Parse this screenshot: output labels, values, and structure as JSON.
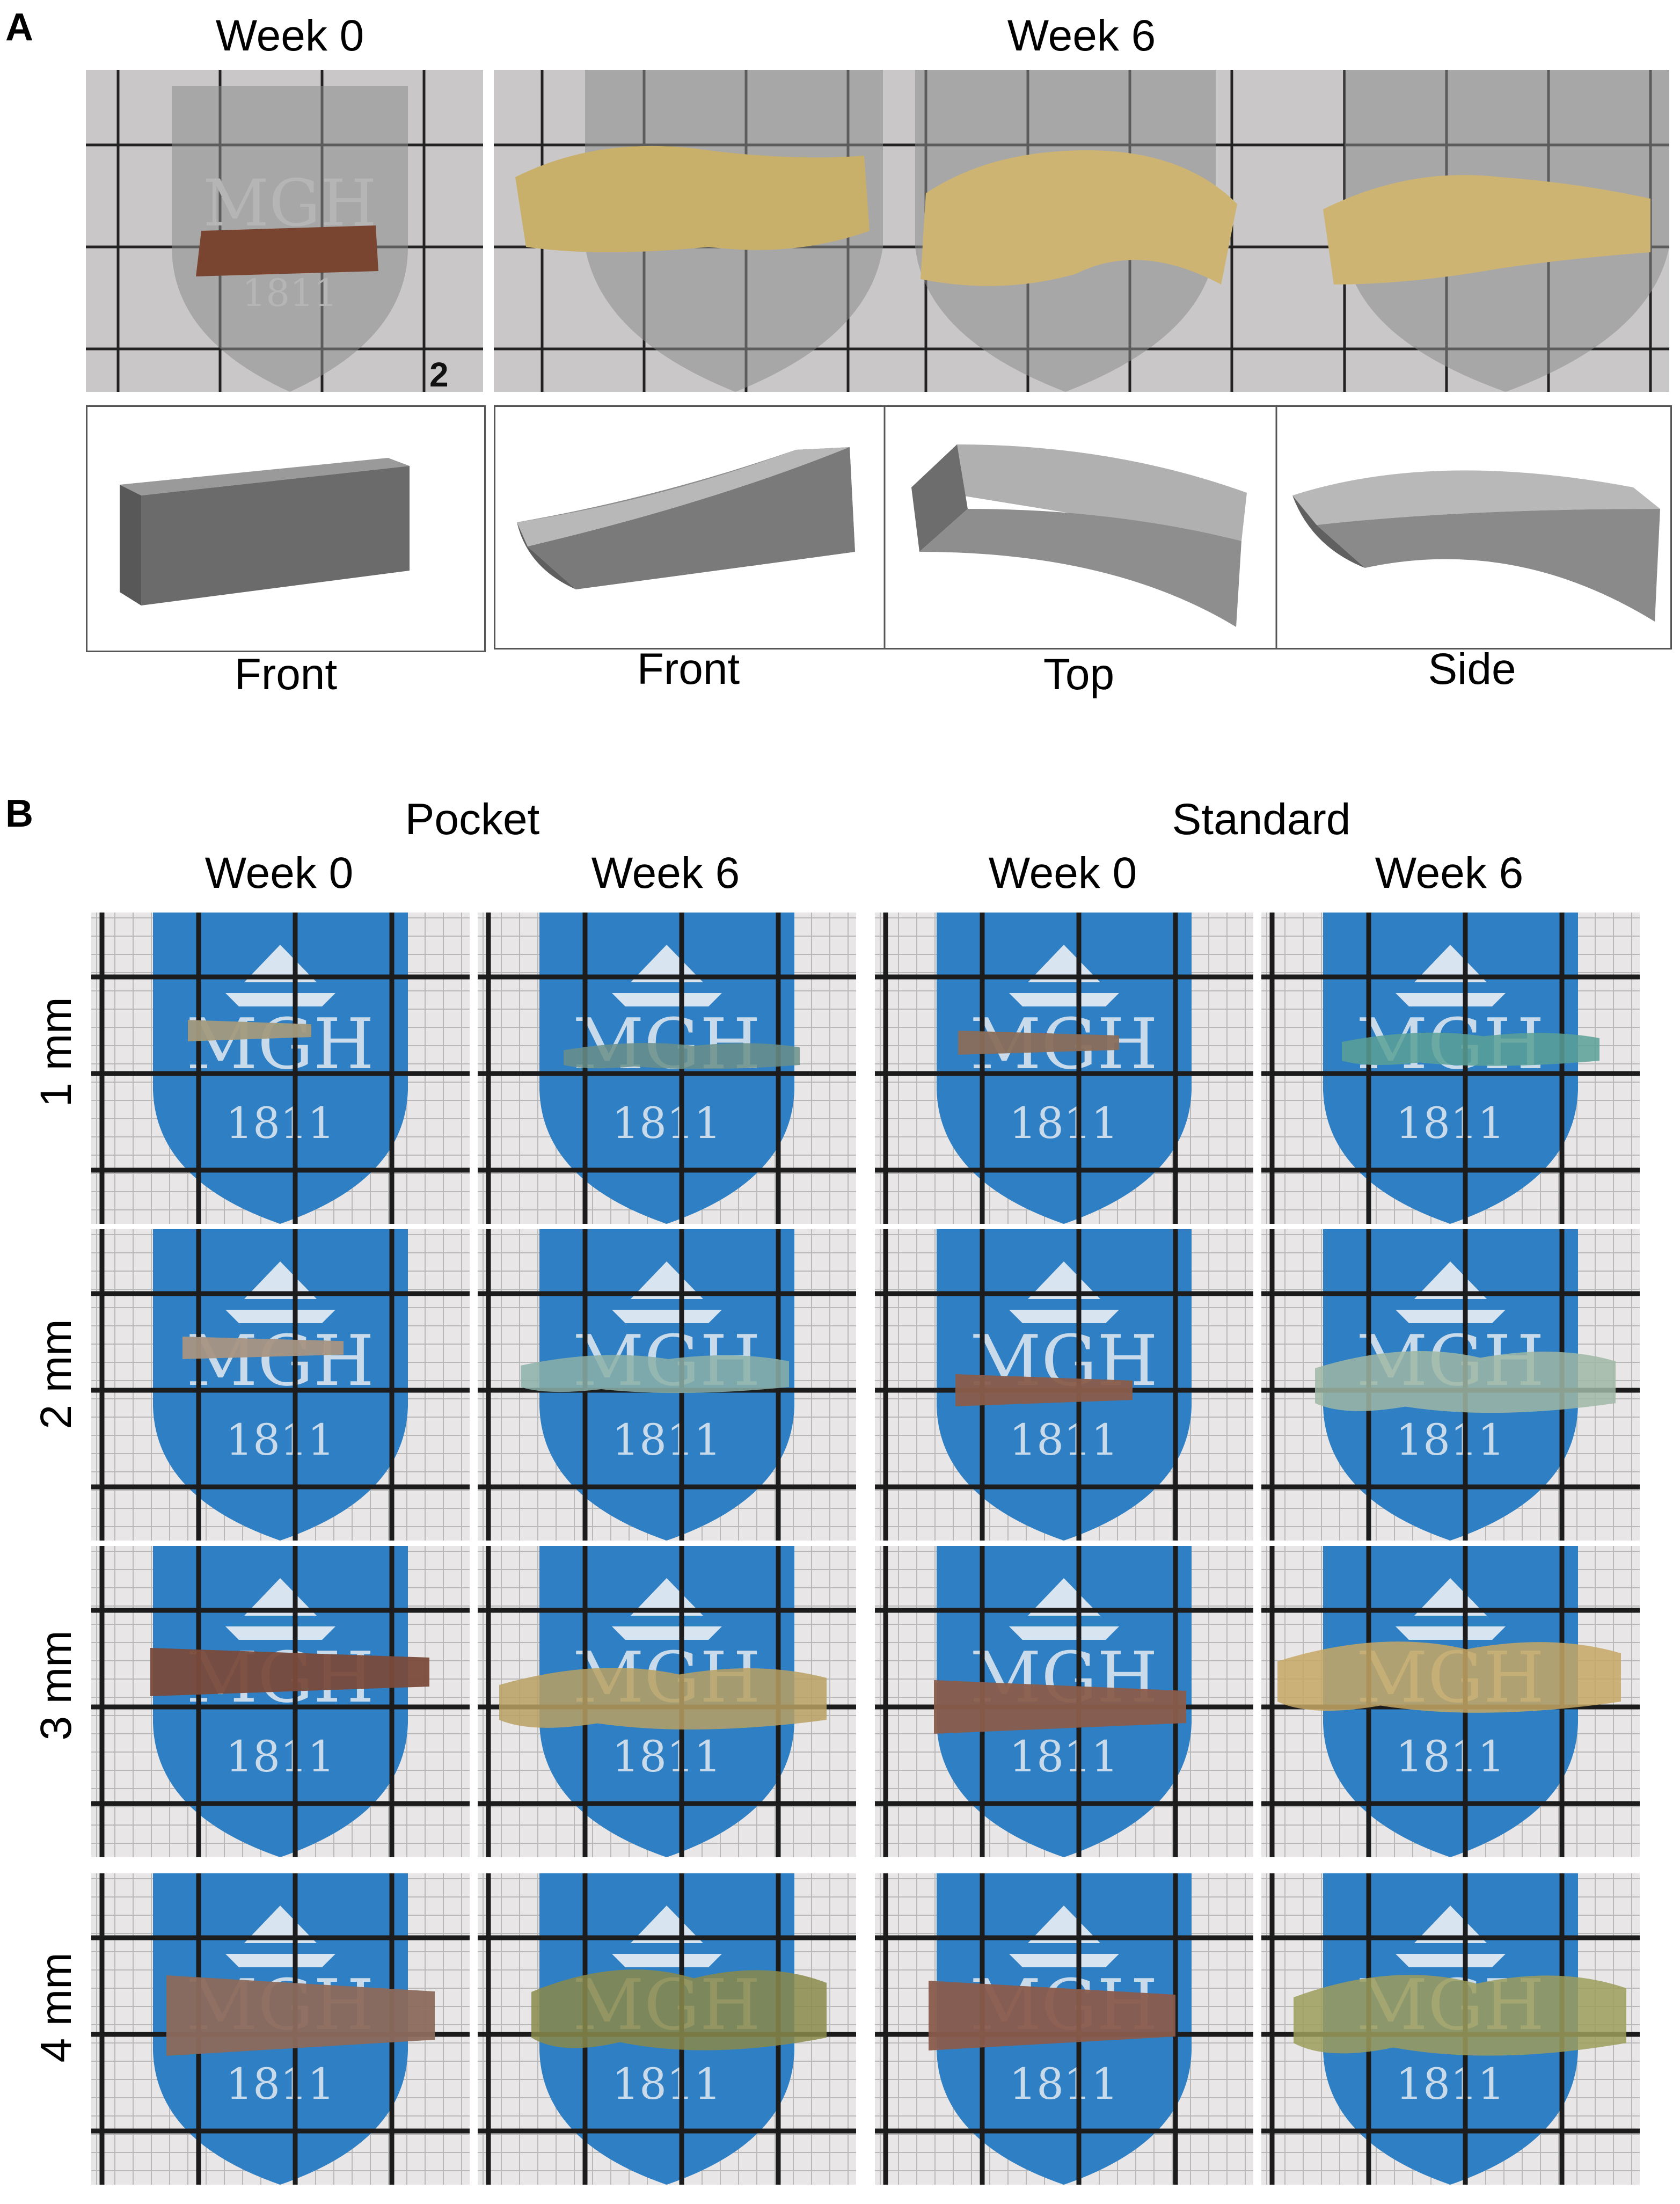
{
  "panel_a": {
    "label": "A",
    "headers": [
      "Week 0",
      "Week 6"
    ],
    "views": [
      "Front",
      "Front",
      "Top",
      "Side"
    ],
    "logo_text": "MGH",
    "logo_year": "1811",
    "edge_number": "2"
  },
  "panel_b": {
    "label": "B",
    "groups": [
      "Pocket",
      "Standard"
    ],
    "timepoints": [
      "Week 0",
      "Week 6",
      "Week 0",
      "Week 6"
    ],
    "rows": [
      "1 mm",
      "2 mm",
      "3 mm",
      "4 mm"
    ],
    "logo_text": "MGH",
    "logo_year": "1811"
  },
  "colors": {
    "shield_blue": "#2e7fc3",
    "grid_line": "#1c1c1c",
    "paper": "#e8e6e6",
    "tissue_brown": "#8a5a44",
    "hydrogel_yellow": "#c8b06a",
    "model_grey": "#6b6b6b"
  }
}
